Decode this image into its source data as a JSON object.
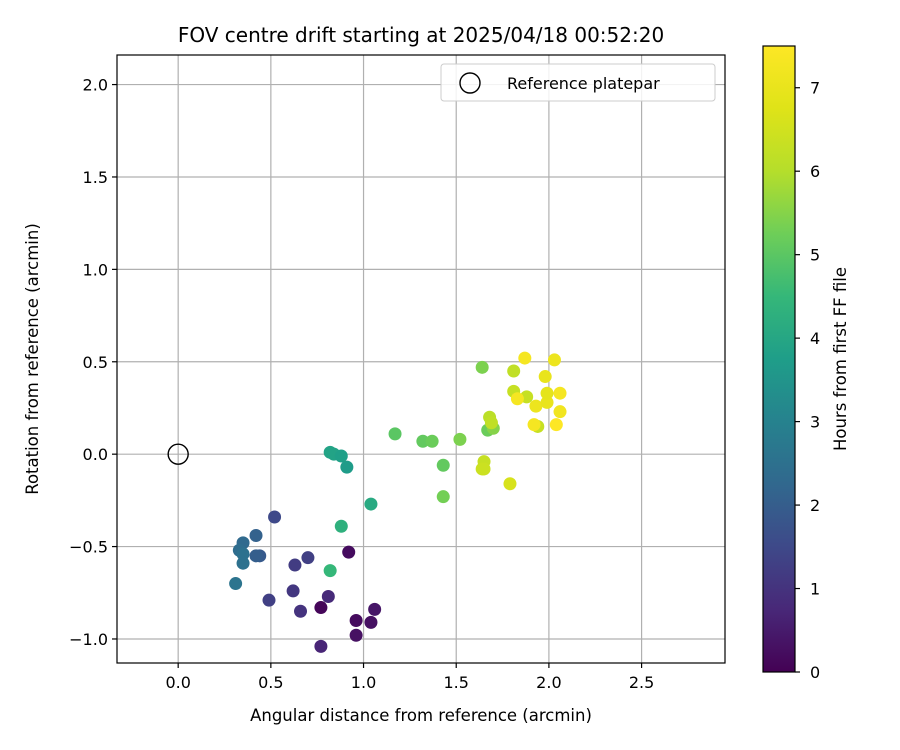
{
  "chart_data": {
    "type": "scatter",
    "title": "FOV centre drift starting at 2025/04/18 00:52:20",
    "xlabel": "Angular distance from reference (arcmin)",
    "ylabel": "Rotation from reference (arcmin)",
    "xlim": [
      -0.33,
      2.95
    ],
    "ylim": [
      -1.13,
      2.16
    ],
    "xticks": [
      0.0,
      0.5,
      1.0,
      1.5,
      2.0,
      2.5
    ],
    "xtick_labels": [
      "0.0",
      "0.5",
      "1.0",
      "1.5",
      "2.0",
      "2.5"
    ],
    "yticks": [
      -1.0,
      -0.5,
      0.0,
      0.5,
      1.0,
      1.5,
      2.0
    ],
    "ytick_labels": [
      "−1.0",
      "−0.5",
      "0.0",
      "0.5",
      "1.0",
      "1.5",
      "2.0"
    ],
    "grid": true,
    "legend": {
      "placement": "top-right",
      "entries": [
        "Reference platepar"
      ]
    },
    "colorbar": {
      "label": "Hours from first FF file",
      "colormap": "viridis",
      "range": [
        0,
        7.5
      ],
      "ticks": [
        0,
        1,
        2,
        3,
        4,
        5,
        6,
        7
      ],
      "tick_labels": [
        "0",
        "1",
        "2",
        "3",
        "4",
        "5",
        "6",
        "7"
      ]
    },
    "reference_point": {
      "name": "Reference platepar",
      "x": 0.0,
      "y": 0.0
    },
    "points": [
      {
        "x": 0.77,
        "y": -1.04,
        "hours": 0.7
      },
      {
        "x": 0.77,
        "y": -0.83,
        "hours": 0.1
      },
      {
        "x": 0.96,
        "y": -0.9,
        "hours": 0.2
      },
      {
        "x": 0.96,
        "y": -0.98,
        "hours": 0.3
      },
      {
        "x": 1.04,
        "y": -0.91,
        "hours": 0.3
      },
      {
        "x": 1.06,
        "y": -0.84,
        "hours": 0.4
      },
      {
        "x": 0.92,
        "y": -0.53,
        "hours": 0.2
      },
      {
        "x": 0.81,
        "y": -0.77,
        "hours": 0.8
      },
      {
        "x": 0.66,
        "y": -0.85,
        "hours": 1.0
      },
      {
        "x": 0.62,
        "y": -0.74,
        "hours": 1.1
      },
      {
        "x": 0.49,
        "y": -0.79,
        "hours": 1.3
      },
      {
        "x": 0.63,
        "y": -0.6,
        "hours": 1.2
      },
      {
        "x": 0.7,
        "y": -0.56,
        "hours": 1.3
      },
      {
        "x": 0.52,
        "y": -0.34,
        "hours": 1.5
      },
      {
        "x": 0.44,
        "y": -0.55,
        "hours": 1.9
      },
      {
        "x": 0.42,
        "y": -0.55,
        "hours": 2.0
      },
      {
        "x": 0.42,
        "y": -0.44,
        "hours": 2.1
      },
      {
        "x": 0.35,
        "y": -0.48,
        "hours": 2.3
      },
      {
        "x": 0.33,
        "y": -0.52,
        "hours": 2.4
      },
      {
        "x": 0.35,
        "y": -0.54,
        "hours": 2.5
      },
      {
        "x": 0.35,
        "y": -0.59,
        "hours": 2.5
      },
      {
        "x": 0.31,
        "y": -0.7,
        "hours": 2.6
      },
      {
        "x": 0.82,
        "y": -0.63,
        "hours": 4.5
      },
      {
        "x": 0.88,
        "y": -0.39,
        "hours": 4.3
      },
      {
        "x": 0.82,
        "y": 0.01,
        "hours": 3.9
      },
      {
        "x": 0.84,
        "y": 0.0,
        "hours": 3.9
      },
      {
        "x": 0.88,
        "y": -0.01,
        "hours": 3.8
      },
      {
        "x": 0.91,
        "y": -0.07,
        "hours": 3.7
      },
      {
        "x": 1.04,
        "y": -0.27,
        "hours": 4.1
      },
      {
        "x": 1.17,
        "y": 0.11,
        "hours": 5.0
      },
      {
        "x": 1.32,
        "y": 0.07,
        "hours": 5.1
      },
      {
        "x": 1.37,
        "y": 0.07,
        "hours": 5.2
      },
      {
        "x": 1.43,
        "y": -0.06,
        "hours": 5.1
      },
      {
        "x": 1.43,
        "y": -0.23,
        "hours": 5.3
      },
      {
        "x": 1.52,
        "y": 0.08,
        "hours": 5.4
      },
      {
        "x": 1.64,
        "y": 0.47,
        "hours": 5.4
      },
      {
        "x": 1.67,
        "y": 0.13,
        "hours": 5.2
      },
      {
        "x": 1.7,
        "y": 0.14,
        "hours": 5.5
      },
      {
        "x": 1.68,
        "y": 0.2,
        "hours": 6.1
      },
      {
        "x": 1.69,
        "y": 0.17,
        "hours": 6.2
      },
      {
        "x": 1.65,
        "y": -0.04,
        "hours": 6.3
      },
      {
        "x": 1.64,
        "y": -0.08,
        "hours": 6.4
      },
      {
        "x": 1.65,
        "y": -0.08,
        "hours": 6.4
      },
      {
        "x": 1.79,
        "y": -0.16,
        "hours": 6.6
      },
      {
        "x": 1.81,
        "y": 0.45,
        "hours": 6.2
      },
      {
        "x": 1.81,
        "y": 0.34,
        "hours": 6.3
      },
      {
        "x": 1.88,
        "y": 0.31,
        "hours": 6.3
      },
      {
        "x": 1.94,
        "y": 0.15,
        "hours": 6.3
      },
      {
        "x": 1.83,
        "y": 0.3,
        "hours": 7.3
      },
      {
        "x": 1.87,
        "y": 0.52,
        "hours": 7.3
      },
      {
        "x": 1.92,
        "y": 0.16,
        "hours": 7.3
      },
      {
        "x": 1.93,
        "y": 0.26,
        "hours": 7.1
      },
      {
        "x": 1.98,
        "y": 0.42,
        "hours": 7.0
      },
      {
        "x": 1.99,
        "y": 0.28,
        "hours": 7.0
      },
      {
        "x": 1.99,
        "y": 0.33,
        "hours": 6.9
      },
      {
        "x": 2.03,
        "y": 0.51,
        "hours": 7.1
      },
      {
        "x": 2.04,
        "y": 0.16,
        "hours": 7.5
      },
      {
        "x": 2.06,
        "y": 0.33,
        "hours": 7.3
      },
      {
        "x": 2.06,
        "y": 0.23,
        "hours": 7.2
      }
    ]
  }
}
